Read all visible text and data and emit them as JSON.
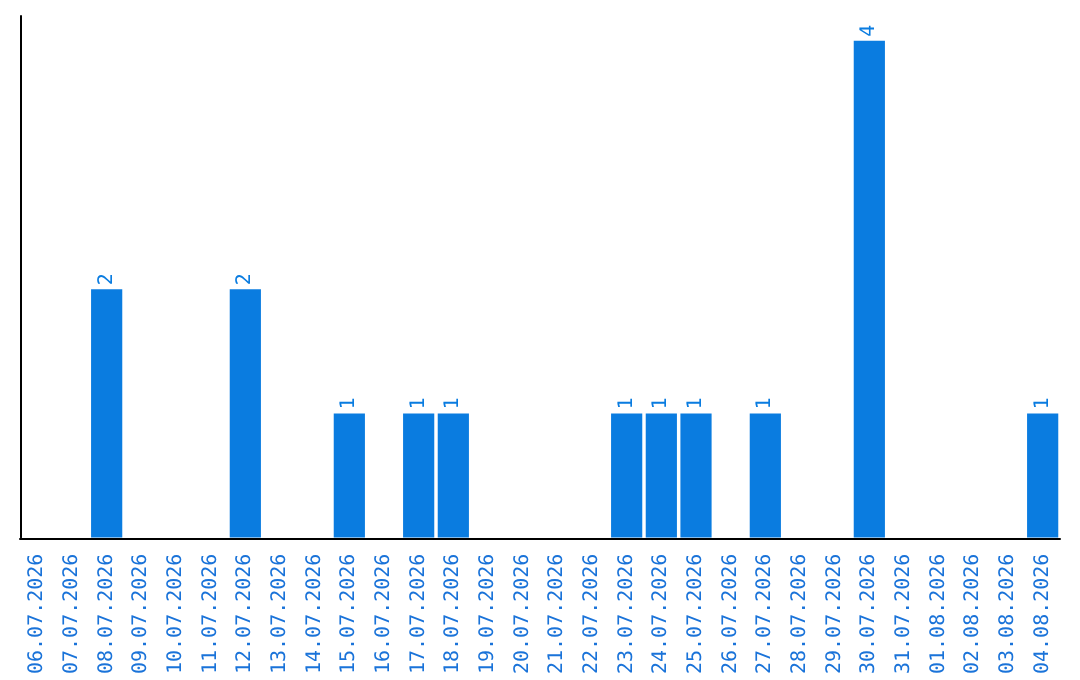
{
  "chart_data": {
    "type": "bar",
    "categories": [
      "06.07.2026",
      "07.07.2026",
      "08.07.2026",
      "09.07.2026",
      "10.07.2026",
      "11.07.2026",
      "12.07.2026",
      "13.07.2026",
      "14.07.2026",
      "15.07.2026",
      "16.07.2026",
      "17.07.2026",
      "18.07.2026",
      "19.07.2026",
      "20.07.2026",
      "21.07.2026",
      "22.07.2026",
      "23.07.2026",
      "24.07.2026",
      "25.07.2026",
      "26.07.2026",
      "27.07.2026",
      "28.07.2026",
      "29.07.2026",
      "30.07.2026",
      "31.07.2026",
      "01.08.2026",
      "02.08.2026",
      "03.08.2026",
      "04.08.2026"
    ],
    "values": [
      0,
      0,
      2,
      0,
      0,
      0,
      2,
      0,
      0,
      1,
      0,
      1,
      1,
      0,
      0,
      0,
      0,
      1,
      1,
      1,
      0,
      1,
      0,
      0,
      4,
      0,
      0,
      0,
      0,
      1
    ],
    "value_labels": [
      null,
      null,
      "2",
      null,
      null,
      null,
      "2",
      null,
      null,
      "1",
      null,
      "1",
      "1",
      null,
      null,
      null,
      null,
      "1",
      "1",
      "1",
      null,
      "1",
      null,
      null,
      "4",
      null,
      null,
      null,
      null,
      "1"
    ],
    "color": "#0a7ce0",
    "tick_labels": "x"
  }
}
